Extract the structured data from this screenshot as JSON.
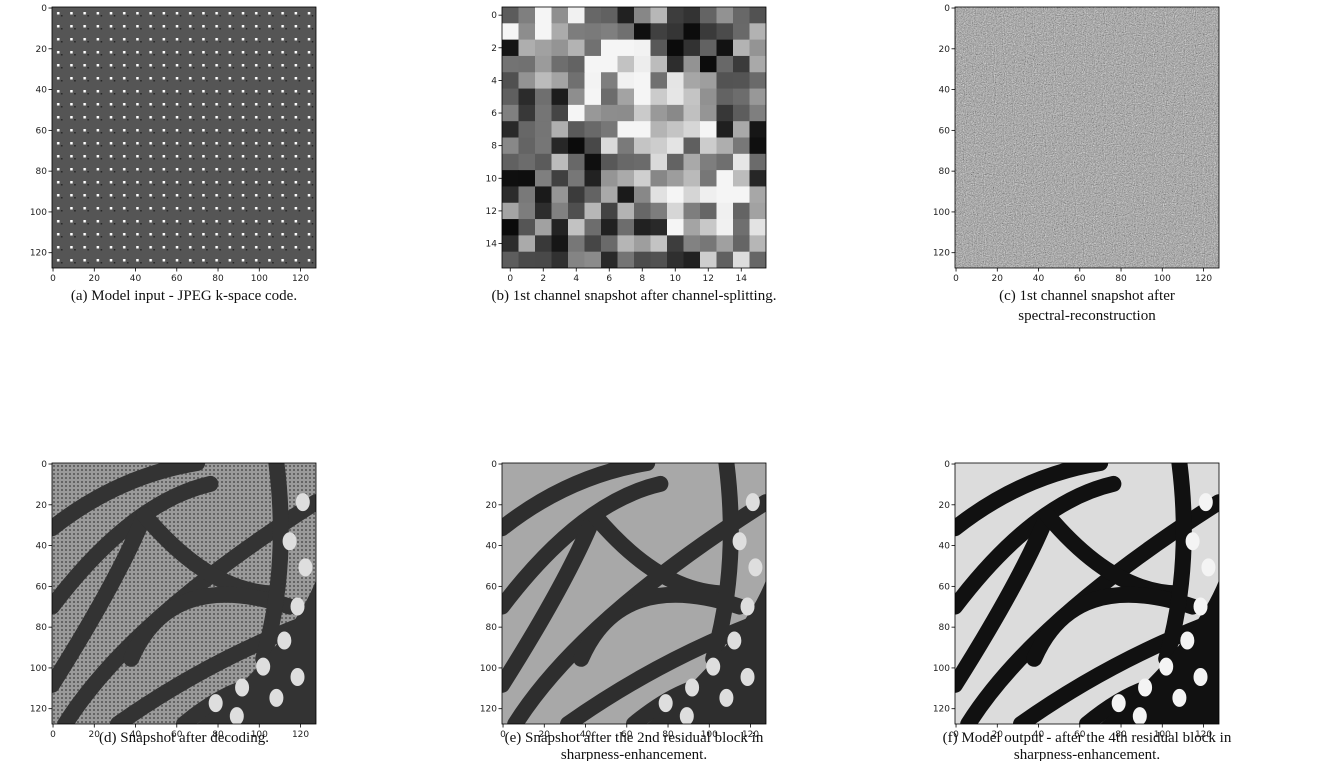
{
  "panels": [
    {
      "caption": [
        "(a) Model input - JPEG k-space code."
      ],
      "xlim": [
        -0.5,
        127.5
      ],
      "ylim": [
        -0.5,
        127.5
      ],
      "yaxis_inverted": true,
      "xticks": [
        0,
        20,
        40,
        60,
        80,
        100,
        120
      ],
      "yticks": [
        0,
        20,
        40,
        60,
        80,
        100,
        120
      ]
    },
    {
      "caption": [
        "(b) 1st channel snapshot after channel-splitting."
      ],
      "xlim": [
        -0.5,
        15.5
      ],
      "ylim": [
        -0.5,
        15.5
      ],
      "yaxis_inverted": true,
      "xticks": [
        0,
        2,
        4,
        6,
        8,
        10,
        12,
        14
      ],
      "yticks": [
        0,
        2,
        4,
        6,
        8,
        10,
        12,
        14
      ]
    },
    {
      "caption": [
        "(c) 1st channel snapshot after",
        "spectral-reconstruction"
      ],
      "xlim": [
        -0.5,
        127.5
      ],
      "ylim": [
        -0.5,
        127.5
      ],
      "yaxis_inverted": true,
      "xticks": [
        0,
        20,
        40,
        60,
        80,
        100,
        120
      ],
      "yticks": [
        0,
        20,
        40,
        60,
        80,
        100,
        120
      ]
    },
    {
      "caption": [
        "(d) Snapshot after decoding."
      ],
      "xlim": [
        -0.5,
        127.5
      ],
      "ylim": [
        -0.5,
        127.5
      ],
      "yaxis_inverted": true,
      "xticks": [
        0,
        20,
        40,
        60,
        80,
        100,
        120
      ],
      "yticks": [
        0,
        20,
        40,
        60,
        80,
        100,
        120
      ]
    },
    {
      "caption": [
        "(e) Snapshot after the 2nd residual block in",
        "sharpness-enhancement."
      ],
      "xlim": [
        -0.5,
        127.5
      ],
      "ylim": [
        -0.5,
        127.5
      ],
      "yaxis_inverted": true,
      "xticks": [
        0,
        20,
        40,
        60,
        80,
        100,
        120
      ],
      "yticks": [
        0,
        20,
        40,
        60,
        80,
        100,
        120
      ]
    },
    {
      "caption": [
        "(f) Model output - after the 4th residual block in",
        "sharpness-enhancement."
      ],
      "xlim": [
        -0.5,
        127.5
      ],
      "ylim": [
        -0.5,
        127.5
      ],
      "yaxis_inverted": true,
      "xticks": [
        0,
        20,
        40,
        60,
        80,
        100,
        120
      ],
      "yticks": [
        0,
        20,
        40,
        60,
        80,
        100,
        120
      ]
    }
  ]
}
